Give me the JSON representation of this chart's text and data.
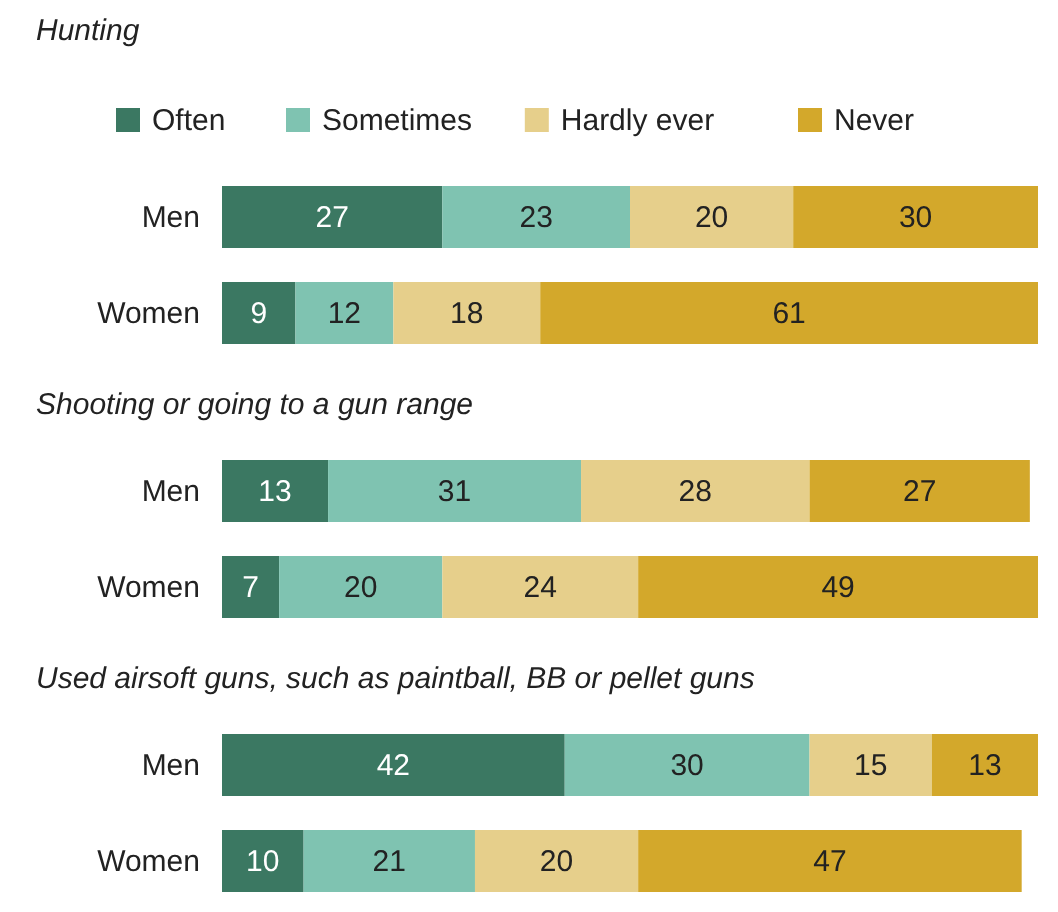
{
  "chart_data": [
    {
      "type": "bar",
      "orientation": "horizontal",
      "stacked": true,
      "title": "Hunting",
      "categories": [
        "Men",
        "Women"
      ],
      "xlim": [
        0,
        100
      ],
      "data_labels": true,
      "legend": "top",
      "series": [
        {
          "name": "Often",
          "color": "#3b7862",
          "values": [
            27,
            9
          ]
        },
        {
          "name": "Sometimes",
          "color": "#7fc3b1",
          "values": [
            23,
            12
          ]
        },
        {
          "name": "Hardly ever",
          "color": "#e6cf8b",
          "values": [
            20,
            18
          ]
        },
        {
          "name": "Never",
          "color": "#d3a82b",
          "values": [
            30,
            61
          ]
        }
      ]
    },
    {
      "type": "bar",
      "orientation": "horizontal",
      "stacked": true,
      "title": "Shooting or going to a gun range",
      "categories": [
        "Men",
        "Women"
      ],
      "xlim": [
        0,
        100
      ],
      "data_labels": true,
      "series": [
        {
          "color": "#3b7862",
          "values": [
            13,
            7
          ]
        },
        {
          "color": "#7fc3b1",
          "values": [
            31,
            20
          ]
        },
        {
          "color": "#e6cf8b",
          "values": [
            28,
            24
          ]
        },
        {
          "color": "#d3a82b",
          "values": [
            27,
            49
          ]
        }
      ]
    },
    {
      "type": "bar",
      "orientation": "horizontal",
      "stacked": true,
      "title": "Used airsoft guns, such as paintball, BB or pellet guns",
      "categories": [
        "Men",
        "Women"
      ],
      "xlim": [
        0,
        100
      ],
      "data_labels": true,
      "series": [
        {
          "color": "#3b7862",
          "values": [
            42,
            10
          ]
        },
        {
          "color": "#7fc3b1",
          "values": [
            30,
            21
          ]
        },
        {
          "color": "#e6cf8b",
          "values": [
            15,
            20
          ]
        },
        {
          "color": "#d3a82b",
          "values": [
            13,
            47
          ]
        }
      ]
    }
  ]
}
